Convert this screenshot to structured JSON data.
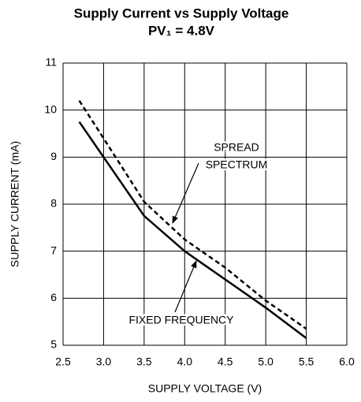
{
  "chart_data": {
    "type": "line",
    "title": "Supply Current vs Supply Voltage",
    "subtitle": "PV₁ = 4.8V",
    "x_label": "SUPPLY VOLTAGE (V)",
    "y_label": "SUPPLY CURRENT (mA)",
    "xlim": [
      2.5,
      6.0
    ],
    "xticks": [
      2.5,
      {
        "value": 3,
        "label": "3.0"
      },
      3.5,
      {
        "value": 4,
        "label": "4.0"
      },
      4.5,
      {
        "value": 5,
        "label": "5.0"
      },
      5.5,
      {
        "value": 6,
        "label": "6.0"
      }
    ],
    "ylim": [
      5,
      11
    ],
    "yticks": [
      5,
      6,
      7,
      8,
      9,
      10,
      11
    ],
    "grid": true,
    "series": [
      {
        "style": "dashed",
        "color": "#000000",
        "x": [
          2.7,
          3.0,
          3.5,
          4.0,
          4.5,
          5.0,
          5.5
        ],
        "values": [
          10.2,
          9.4,
          8.05,
          7.25,
          6.65,
          5.95,
          5.35
        ]
      },
      {
        "style": "solid",
        "color": "#000000",
        "x": [
          2.7,
          3.0,
          3.5,
          4.0,
          4.5,
          5.0,
          5.5
        ],
        "values": [
          9.75,
          9.0,
          7.75,
          7.0,
          6.4,
          5.8,
          5.15
        ]
      }
    ],
    "annotations": [
      {
        "lines": [
          "SPREAD",
          "SPECTRUM"
        ]
      },
      {
        "lines": [
          "FIXED FREQUENCY"
        ]
      }
    ]
  }
}
